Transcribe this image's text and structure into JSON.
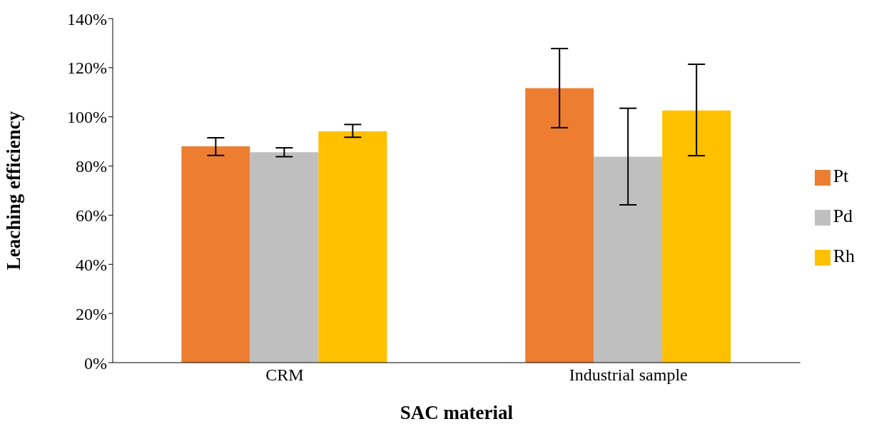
{
  "chart_data": {
    "type": "bar",
    "xlabel": "SAC material",
    "ylabel": "Leaching efficiency",
    "categories": [
      "CRM",
      "Industrial sample"
    ],
    "series": [
      {
        "name": "Pt",
        "color": "#ed7d31",
        "values": [
          88,
          111.7
        ],
        "errors": [
          [
            84.3,
            91.5
          ],
          [
            95.6,
            127.8
          ]
        ]
      },
      {
        "name": "Pd",
        "color": "#bfbfbf",
        "values": [
          85.6,
          83.8
        ],
        "errors": [
          [
            83.8,
            87.4
          ],
          [
            64.2,
            103.5
          ]
        ]
      },
      {
        "name": "Rh",
        "color": "#ffc000",
        "values": [
          94.1,
          102.6
        ],
        "errors": [
          [
            91.7,
            96.9
          ],
          [
            84.2,
            121.4
          ]
        ]
      }
    ],
    "ylim": [
      0,
      140
    ],
    "yticks": [
      {
        "value": 0,
        "label": "0%"
      },
      {
        "value": 20,
        "label": "20%"
      },
      {
        "value": 40,
        "label": "40%"
      },
      {
        "value": 60,
        "label": "60%"
      },
      {
        "value": 80,
        "label": "80%"
      },
      {
        "value": 100,
        "label": "100%"
      },
      {
        "value": 120,
        "label": "120%"
      },
      {
        "value": 140,
        "label": "140%"
      }
    ],
    "grid": false,
    "legend": "right"
  }
}
